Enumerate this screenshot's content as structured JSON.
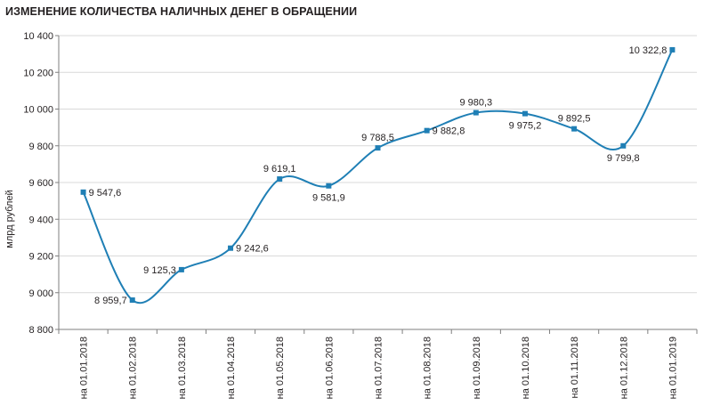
{
  "chart_data": {
    "type": "line",
    "title": "ИЗМЕНЕНИЕ КОЛИЧЕСТВА НАЛИЧНЫХ ДЕНЕГ В ОБРАЩЕНИИ",
    "ylabel": "млрд рублей",
    "xlabel": "",
    "ylim": [
      8800,
      10400
    ],
    "yticks": [
      8800,
      9000,
      9200,
      9400,
      9600,
      9800,
      10000,
      10200,
      10400
    ],
    "ytick_labels": [
      "8 800",
      "9 000",
      "9 200",
      "9 400",
      "9 600",
      "9 800",
      "10 000",
      "10 200",
      "10 400"
    ],
    "grid": true,
    "categories": [
      "на 01.01.2018",
      "на 01.02.2018",
      "на 01.03.2018",
      "на 01.04.2018",
      "на 01.05.2018",
      "на 01.06.2018",
      "на 01.07.2018",
      "на 01.08.2018",
      "на 01.09.2018",
      "на 01.10.2018",
      "на 01.11.2018",
      "на 01.12.2018",
      "на 01.01.2019"
    ],
    "values": [
      9547.6,
      8959.7,
      9125.3,
      9242.6,
      9619.1,
      9581.9,
      9788.5,
      9882.8,
      9980.3,
      9975.2,
      9892.5,
      9799.8,
      10322.8
    ],
    "data_labels": [
      "9 547,6",
      "8 959,7",
      "9 125,3",
      "9 242,6",
      "9 619,1",
      "9 581,9",
      "9 788,5",
      "9 882,8",
      "9 980,3",
      "9 975,2",
      "9 892,5",
      "9 799,8",
      "10 322,8"
    ],
    "line_color": "#1f7fb5",
    "marker_color": "#1f7fb5",
    "grid_color": "#d9d9d9"
  }
}
